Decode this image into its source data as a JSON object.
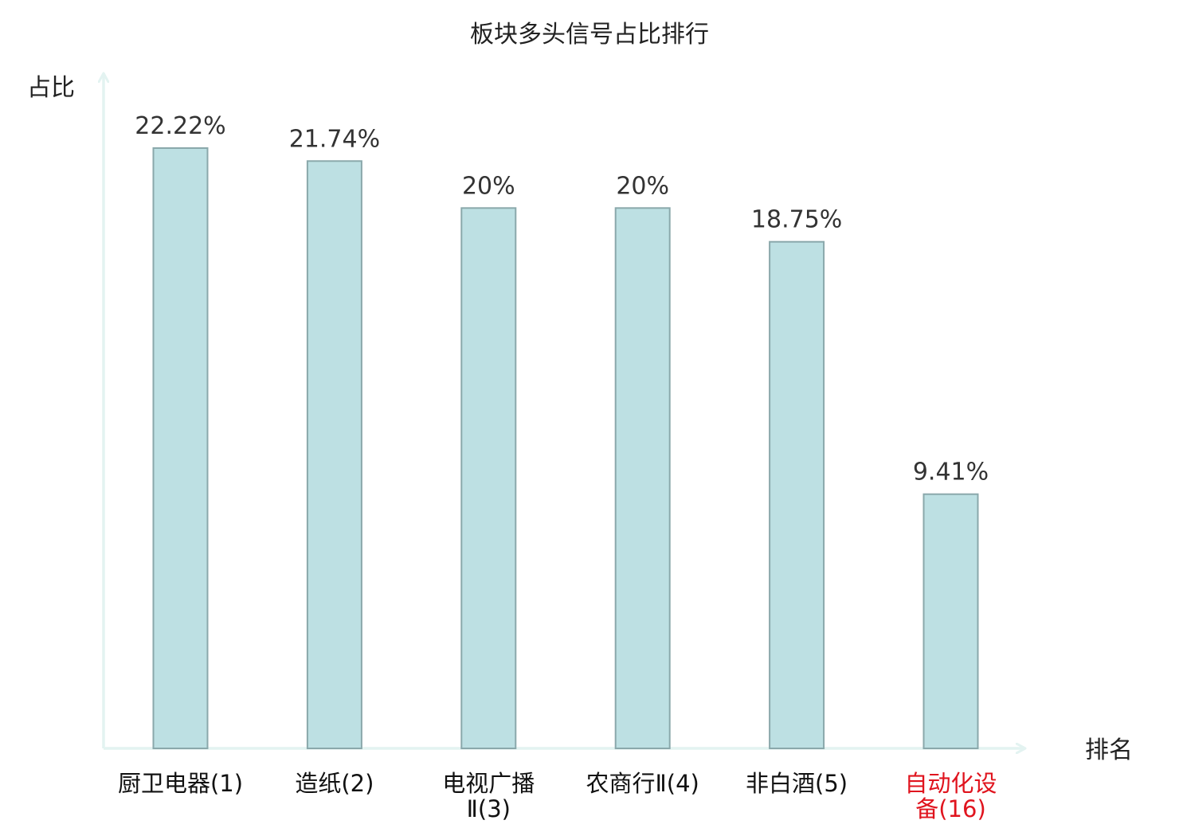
{
  "chart_data": {
    "type": "bar",
    "title": "板块多头信号占比排行",
    "ylabel": "占比",
    "xlabel": "排名",
    "categories": [
      [
        "厨卫电器(1)"
      ],
      [
        "造纸(2)"
      ],
      [
        "电视广播",
        "Ⅱ(3)"
      ],
      [
        "农商行Ⅱ(4)"
      ],
      [
        "非白酒(5)"
      ],
      [
        "自动化设",
        "备(16)"
      ]
    ],
    "values": [
      22.22,
      21.74,
      20,
      20,
      18.75,
      9.41
    ],
    "value_labels": [
      "22.22%",
      "21.74%",
      "20%",
      "20%",
      "18.75%",
      "9.41%"
    ],
    "highlight_index": 5,
    "ylim": [
      0,
      25
    ],
    "grid": false,
    "legend": "none",
    "colors": {
      "bar_fill": "#bde0e3",
      "bar_stroke": "#8aa8ab",
      "axis": "#e3f3f1",
      "text": "#333333",
      "title": "#222222",
      "highlight": "#e0141e"
    }
  }
}
